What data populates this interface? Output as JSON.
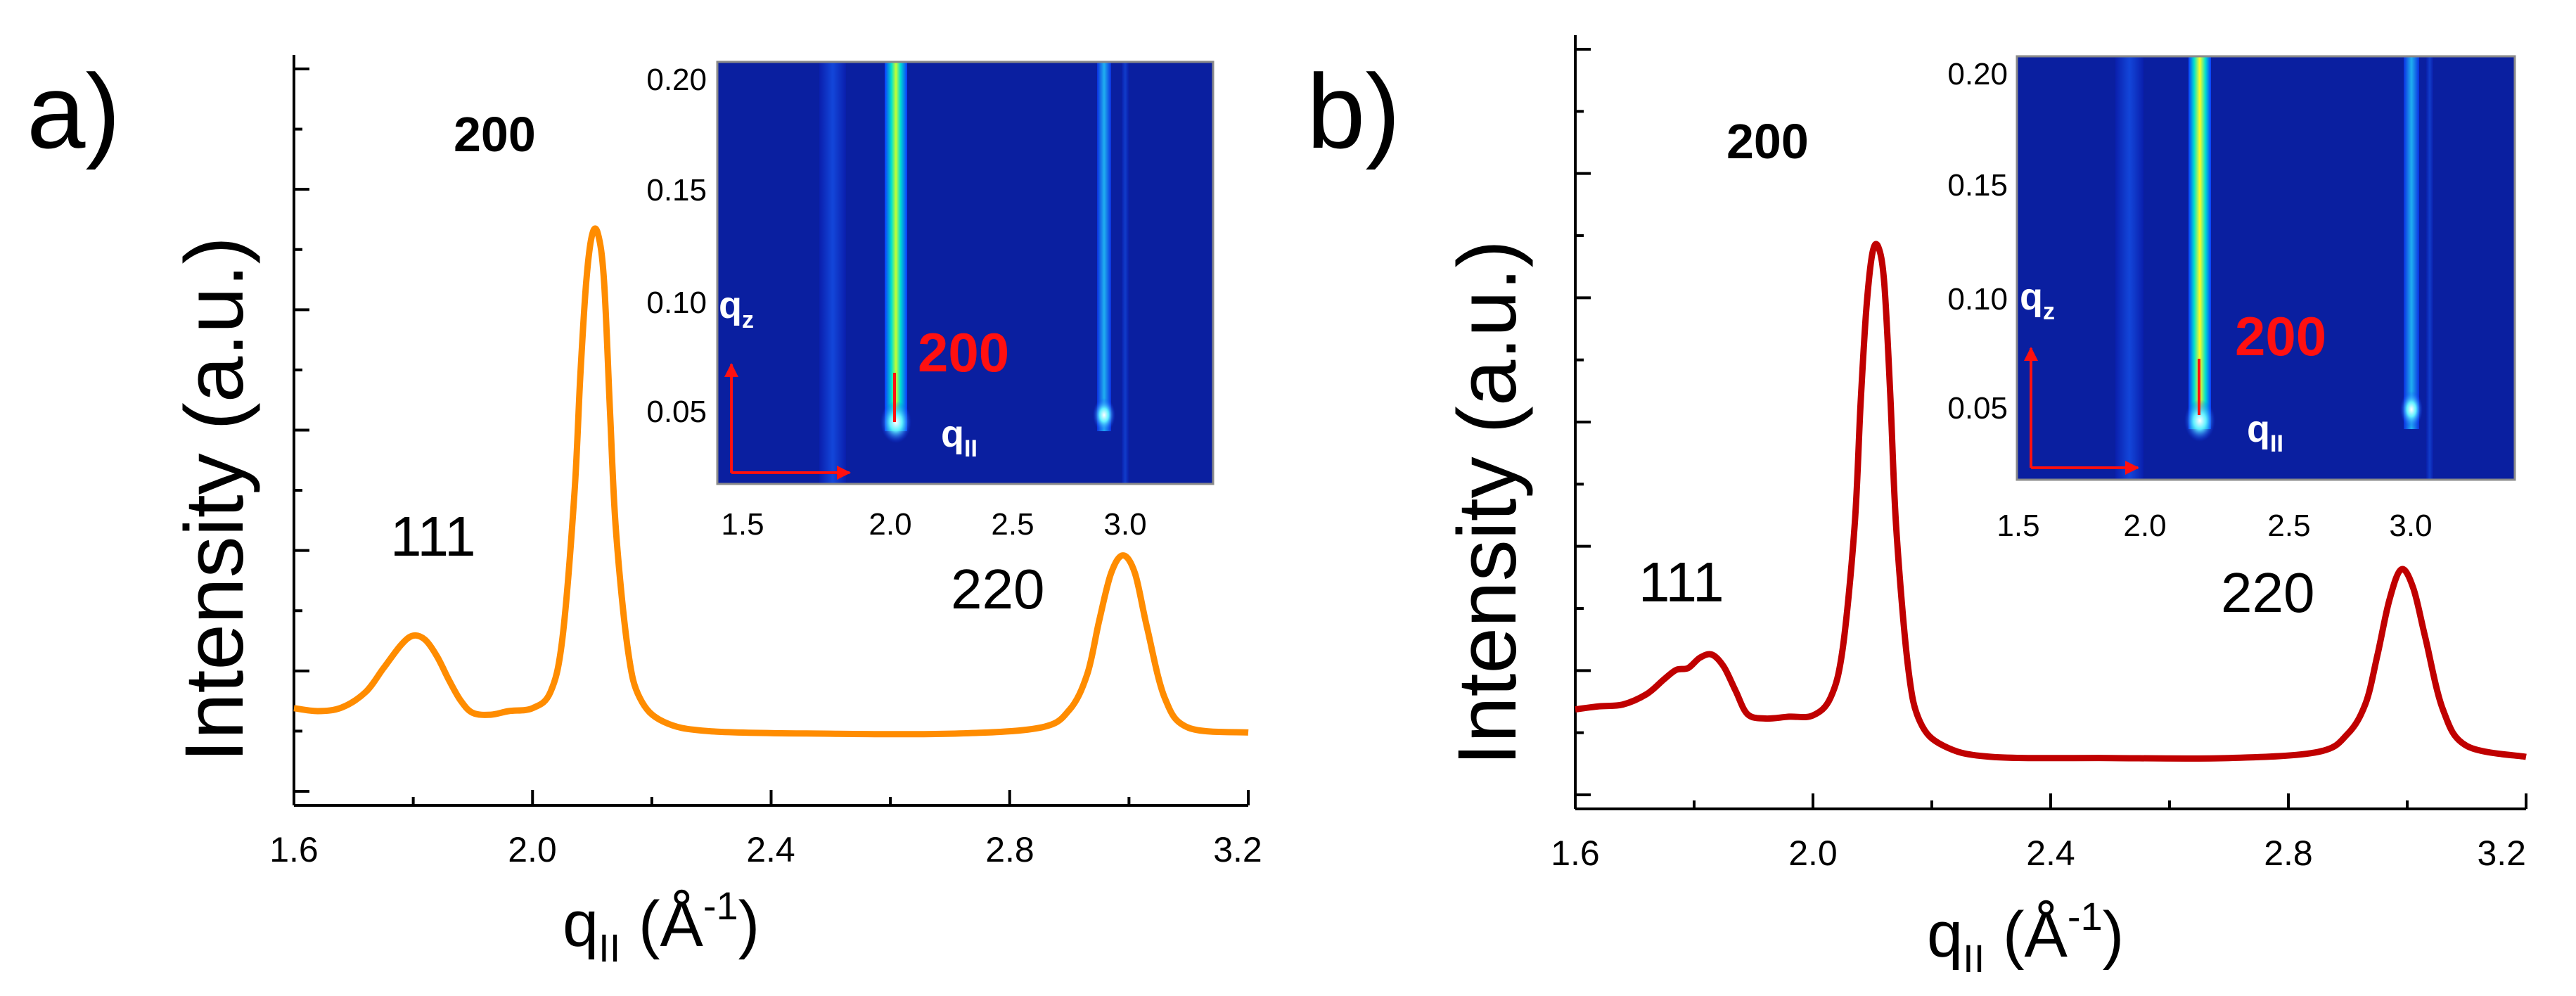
{
  "panels": {
    "a": {
      "letter": "a)",
      "color": "#FF8C00",
      "ylabel": "Intensity (a.u.)",
      "xlabel": "q",
      "xlabel_sub": "II",
      "xlabel_unit": " (Å",
      "xlabel_exp": "-1",
      "xlabel_close": ")",
      "xticks": [
        "1.6",
        "2.0",
        "2.4",
        "2.8",
        "3.2"
      ],
      "peaks": {
        "p111": "111",
        "p200": "200",
        "p220": "220"
      },
      "inset": {
        "yticks": [
          "0.20",
          "0.15",
          "0.10",
          "0.05"
        ],
        "xticks": [
          "1.5",
          "2.0",
          "2.5",
          "3.0"
        ],
        "qz": "q",
        "qz_sub": "z",
        "qpar": "q",
        "qpar_sub": "II",
        "label": "200"
      }
    },
    "b": {
      "letter": "b)",
      "color": "#C00000",
      "ylabel": "Intensity (a.u.)",
      "xlabel": "q",
      "xlabel_sub": "II",
      "xlabel_unit": " (Å",
      "xlabel_exp": "-1",
      "xlabel_close": ")",
      "xticks": [
        "1.6",
        "2.0",
        "2.4",
        "2.8",
        "3.2"
      ],
      "peaks": {
        "p111": "111",
        "p200": "200",
        "p220": "220"
      },
      "inset": {
        "yticks": [
          "0.20",
          "0.15",
          "0.10",
          "0.05"
        ],
        "xticks": [
          "1.5",
          "2.0",
          "2.5",
          "3.0"
        ],
        "qz": "q",
        "qz_sub": "z",
        "qpar": "q",
        "qpar_sub": "II",
        "label": "200"
      }
    }
  },
  "chart_data": [
    {
      "type": "line",
      "panel": "a",
      "xlabel": "q_II (Å^-1)",
      "ylabel": "Intensity (a.u.)",
      "xlim": [
        1.6,
        3.2
      ],
      "ylim": [
        0,
        1
      ],
      "x": [
        1.6,
        1.64,
        1.68,
        1.72,
        1.75,
        1.78,
        1.8,
        1.82,
        1.84,
        1.86,
        1.88,
        1.9,
        1.93,
        1.96,
        2.0,
        2.03,
        2.05,
        2.07,
        2.08,
        2.09,
        2.1,
        2.11,
        2.12,
        2.13,
        2.14,
        2.16,
        2.18,
        2.22,
        2.3,
        2.5,
        2.7,
        2.85,
        2.9,
        2.93,
        2.95,
        2.97,
        2.99,
        3.01,
        3.03,
        3.06,
        3.1,
        3.2
      ],
      "y": [
        0.063,
        0.058,
        0.064,
        0.09,
        0.13,
        0.17,
        0.185,
        0.178,
        0.15,
        0.11,
        0.075,
        0.055,
        0.052,
        0.058,
        0.063,
        0.09,
        0.18,
        0.42,
        0.62,
        0.78,
        0.86,
        0.86,
        0.78,
        0.56,
        0.36,
        0.16,
        0.08,
        0.04,
        0.024,
        0.02,
        0.02,
        0.03,
        0.06,
        0.12,
        0.21,
        0.29,
        0.32,
        0.29,
        0.2,
        0.08,
        0.03,
        0.022
      ]
    },
    {
      "type": "line",
      "panel": "b",
      "xlabel": "q_II (Å^-1)",
      "ylabel": "Intensity (a.u.)",
      "xlim": [
        1.6,
        3.2
      ],
      "ylim": [
        0,
        1
      ],
      "x": [
        1.6,
        1.64,
        1.68,
        1.72,
        1.75,
        1.77,
        1.79,
        1.81,
        1.83,
        1.85,
        1.87,
        1.89,
        1.92,
        1.96,
        2.0,
        2.03,
        2.05,
        2.07,
        2.08,
        2.09,
        2.1,
        2.11,
        2.12,
        2.13,
        2.14,
        2.16,
        2.18,
        2.22,
        2.3,
        2.5,
        2.7,
        2.85,
        2.9,
        2.93,
        2.95,
        2.97,
        2.99,
        3.01,
        3.03,
        3.06,
        3.1,
        3.2
      ],
      "y": [
        0.1,
        0.105,
        0.108,
        0.125,
        0.15,
        0.165,
        0.168,
        0.185,
        0.19,
        0.17,
        0.13,
        0.092,
        0.085,
        0.088,
        0.09,
        0.12,
        0.2,
        0.4,
        0.6,
        0.76,
        0.85,
        0.86,
        0.8,
        0.62,
        0.4,
        0.17,
        0.08,
        0.04,
        0.022,
        0.02,
        0.02,
        0.03,
        0.06,
        0.11,
        0.19,
        0.28,
        0.33,
        0.3,
        0.22,
        0.1,
        0.04,
        0.022
      ]
    }
  ]
}
